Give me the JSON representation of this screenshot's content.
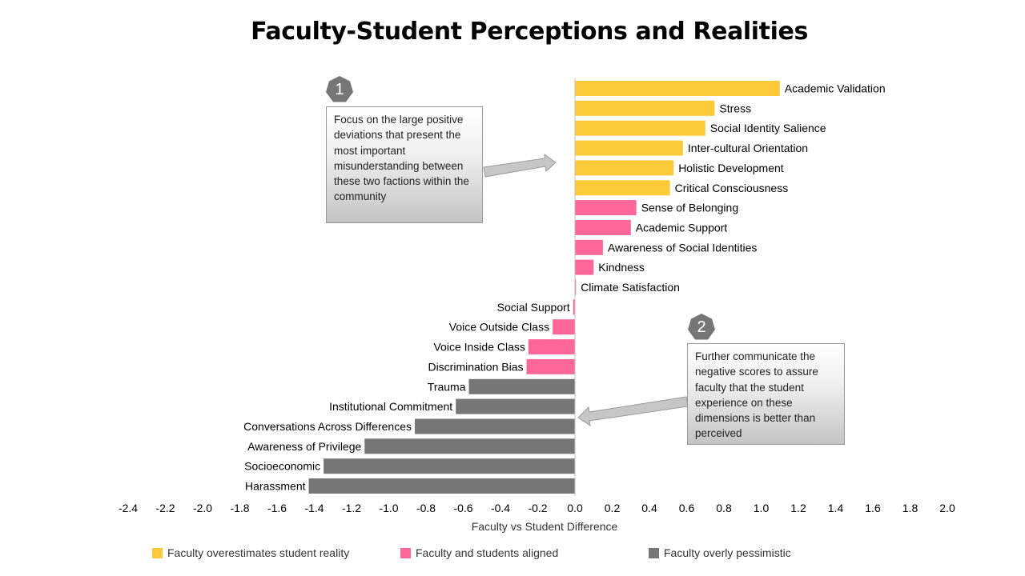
{
  "title": "Faculty-Student Perceptions and Realities",
  "colors": {
    "overestimates": "#FFCA3A",
    "aligned": "#FF6699",
    "pessimistic": "#767676",
    "axis": "#BFBFBF"
  },
  "chart_data": {
    "type": "bar",
    "orientation": "horizontal",
    "title": "Faculty-Student Perceptions and Realities",
    "xlabel": "Faculty vs Student Difference",
    "ylabel": "",
    "xlim": [
      -2.4,
      2.0
    ],
    "xticks": [
      "-2.4",
      "-2.2",
      "-2.0",
      "-1.8",
      "-1.6",
      "-1.4",
      "-1.2",
      "-1.0",
      "-0.8",
      "-0.6",
      "-0.4",
      "-0.2",
      "0.0",
      "0.2",
      "0.4",
      "0.6",
      "0.8",
      "1.0",
      "1.2",
      "1.4",
      "1.6",
      "1.8",
      "2.0"
    ],
    "categories": [
      "Academic Validation",
      "Stress",
      "Social Identity Salience",
      "Inter-cultural Orientation",
      "Holistic Development",
      "Critical Consciousness",
      "Sense of Belonging",
      "Academic Support",
      "Awareness of Social Identities",
      "Kindness",
      "Climate Satisfaction",
      "Social Support",
      "Voice Outside Class",
      "Voice Inside Class",
      "Discrimination Bias",
      "Trauma",
      "Institutional Commitment",
      "Conversations Across Differences",
      "Awareness of Privilege",
      "Socioeconomic",
      "Harassment"
    ],
    "values": [
      1.1,
      0.75,
      0.7,
      0.58,
      0.53,
      0.51,
      0.33,
      0.3,
      0.15,
      0.1,
      0.005,
      -0.01,
      -0.12,
      -0.25,
      -0.26,
      -0.57,
      -0.64,
      -0.86,
      -1.13,
      -1.35,
      -1.43
    ],
    "groups": [
      "overestimates",
      "overestimates",
      "overestimates",
      "overestimates",
      "overestimates",
      "overestimates",
      "aligned",
      "aligned",
      "aligned",
      "aligned",
      "aligned",
      "aligned",
      "aligned",
      "aligned",
      "aligned",
      "pessimistic",
      "pessimistic",
      "pessimistic",
      "pessimistic",
      "pessimistic",
      "pessimistic"
    ],
    "legend": [
      {
        "key": "overestimates",
        "label": "Faculty overestimates student reality"
      },
      {
        "key": "aligned",
        "label": "Faculty and students aligned"
      },
      {
        "key": "pessimistic",
        "label": "Faculty overly pessimistic"
      }
    ],
    "legend_position": "bottom"
  },
  "callouts": [
    {
      "number": "1",
      "text": "Focus on the large positive deviations that present the most important misunderstanding between these two factions within the community"
    },
    {
      "number": "2",
      "text": "Further communicate the negative scores to assure faculty that the student experience on these dimensions is better than perceived"
    }
  ]
}
